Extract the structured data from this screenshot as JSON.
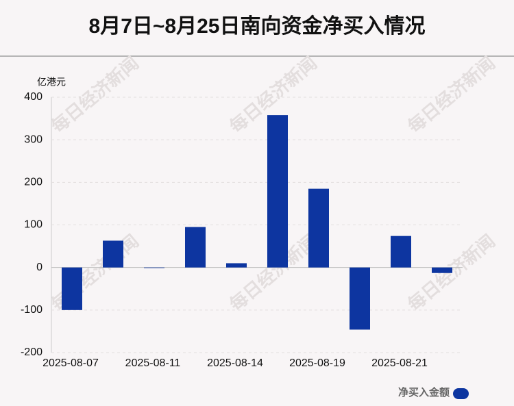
{
  "chart_data": {
    "type": "bar",
    "title": "8月7日~8月25日南向资金净买入情况",
    "y_label": "亿港元",
    "watermark": "每日经济新闻",
    "categories": [
      "2025-08-07",
      null,
      "2025-08-11",
      null,
      "2025-08-14",
      null,
      "2025-08-19",
      null,
      "2025-08-21",
      null
    ],
    "series": [
      {
        "name": "净买入金额",
        "color": "#0d35a0",
        "values": [
          -100,
          63,
          0,
          95,
          10,
          358,
          185,
          -146,
          74,
          -13
        ]
      }
    ],
    "ylim": [
      -200,
      400
    ],
    "yticks": [
      -200,
      -100,
      0,
      100,
      200,
      300,
      400
    ],
    "grid": true
  }
}
